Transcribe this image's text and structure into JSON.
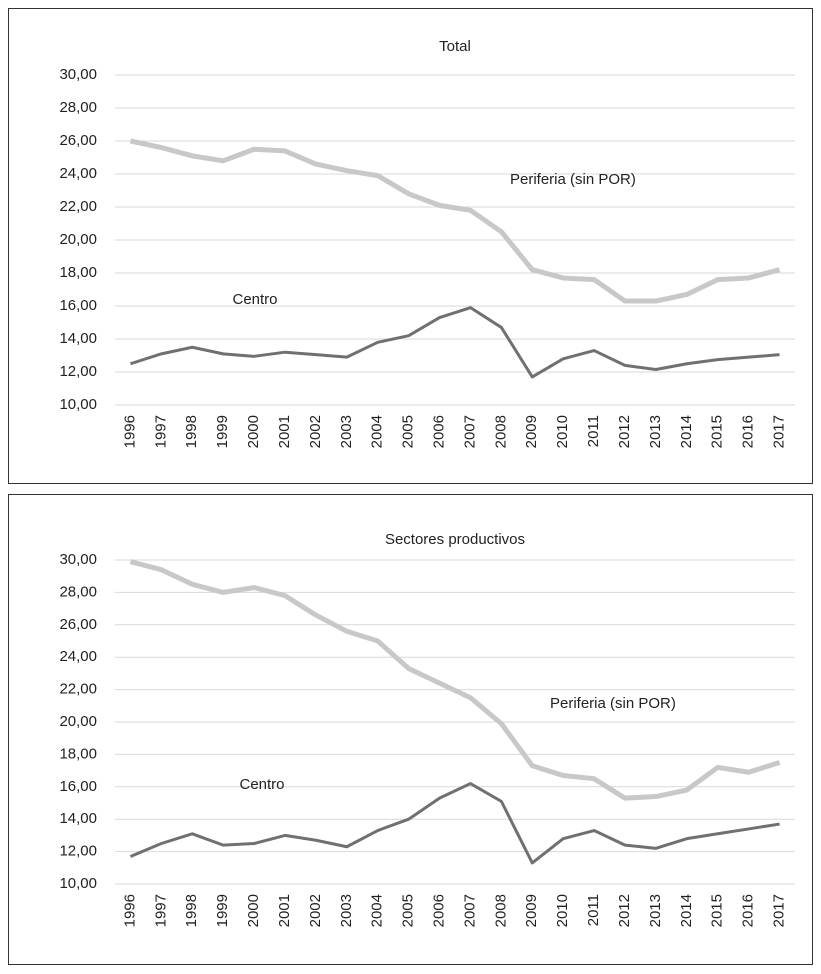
{
  "chart_data": [
    {
      "type": "line",
      "title": "Total",
      "categories": [
        "1996",
        "1997",
        "1998",
        "1999",
        "2000",
        "2001",
        "2002",
        "2003",
        "2004",
        "2005",
        "2006",
        "2007",
        "2008",
        "2009",
        "2010",
        "2011",
        "2012",
        "2013",
        "2014",
        "2015",
        "2016",
        "2017"
      ],
      "series": [
        {
          "name": "Periferia (sin POR)",
          "color": "#c8c8c8",
          "values": [
            26.0,
            25.6,
            25.1,
            24.8,
            25.5,
            25.4,
            24.6,
            24.2,
            23.9,
            22.8,
            22.1,
            21.8,
            20.5,
            18.2,
            17.7,
            17.6,
            16.3,
            16.3,
            16.7,
            17.6,
            17.7,
            18.2
          ]
        },
        {
          "name": "Centro",
          "color": "#707070",
          "values": [
            12.5,
            13.1,
            13.5,
            13.1,
            12.95,
            13.2,
            13.05,
            12.9,
            13.8,
            14.2,
            15.3,
            15.9,
            14.7,
            11.7,
            12.8,
            13.3,
            12.4,
            12.15,
            12.5,
            12.75,
            12.9,
            13.05
          ]
        }
      ],
      "ylim": [
        10,
        30
      ],
      "yticks": [
        {
          "value": 10,
          "label": "10,00"
        },
        {
          "value": 12,
          "label": "12,00"
        },
        {
          "value": 14,
          "label": "14,00"
        },
        {
          "value": 16,
          "label": "16,00"
        },
        {
          "value": 18,
          "label": "18,00"
        },
        {
          "value": 20,
          "label": "20,00"
        },
        {
          "value": 22,
          "label": "22,00"
        },
        {
          "value": 24,
          "label": "24,00"
        },
        {
          "value": 26,
          "label": "26,00"
        },
        {
          "value": 28,
          "label": "28,00"
        },
        {
          "value": 30,
          "label": "30,00"
        }
      ],
      "grid": true
    },
    {
      "type": "line",
      "title": "Sectores productivos",
      "categories": [
        "1996",
        "1997",
        "1998",
        "1999",
        "2000",
        "2001",
        "2002",
        "2003",
        "2004",
        "2005",
        "2006",
        "2007",
        "2008",
        "2009",
        "2010",
        "2011",
        "2012",
        "2013",
        "2014",
        "2015",
        "2016",
        "2017"
      ],
      "series": [
        {
          "name": "Periferia (sin POR)",
          "color": "#c8c8c8",
          "values": [
            29.9,
            29.4,
            28.5,
            28.0,
            28.3,
            27.8,
            26.6,
            25.6,
            25.0,
            23.3,
            22.4,
            21.5,
            19.9,
            17.3,
            16.7,
            16.5,
            15.3,
            15.4,
            15.8,
            17.2,
            16.9,
            17.5
          ]
        },
        {
          "name": "Centro",
          "color": "#707070",
          "values": [
            11.7,
            12.5,
            13.1,
            12.4,
            12.5,
            13.0,
            12.7,
            12.3,
            13.3,
            14.0,
            15.3,
            16.2,
            15.1,
            11.3,
            12.8,
            13.3,
            12.4,
            12.2,
            12.8,
            13.1,
            13.4,
            13.7
          ]
        }
      ],
      "ylim": [
        10,
        30
      ],
      "yticks": [
        {
          "value": 10,
          "label": "10,00"
        },
        {
          "value": 12,
          "label": "12,00"
        },
        {
          "value": 14,
          "label": "14,00"
        },
        {
          "value": 16,
          "label": "16,00"
        },
        {
          "value": 18,
          "label": "18,00"
        },
        {
          "value": 20,
          "label": "20,00"
        },
        {
          "value": 22,
          "label": "22,00"
        },
        {
          "value": 24,
          "label": "24,00"
        },
        {
          "value": 26,
          "label": "26,00"
        },
        {
          "value": 28,
          "label": "28,00"
        },
        {
          "value": 30,
          "label": "30,00"
        }
      ],
      "grid": true
    }
  ]
}
